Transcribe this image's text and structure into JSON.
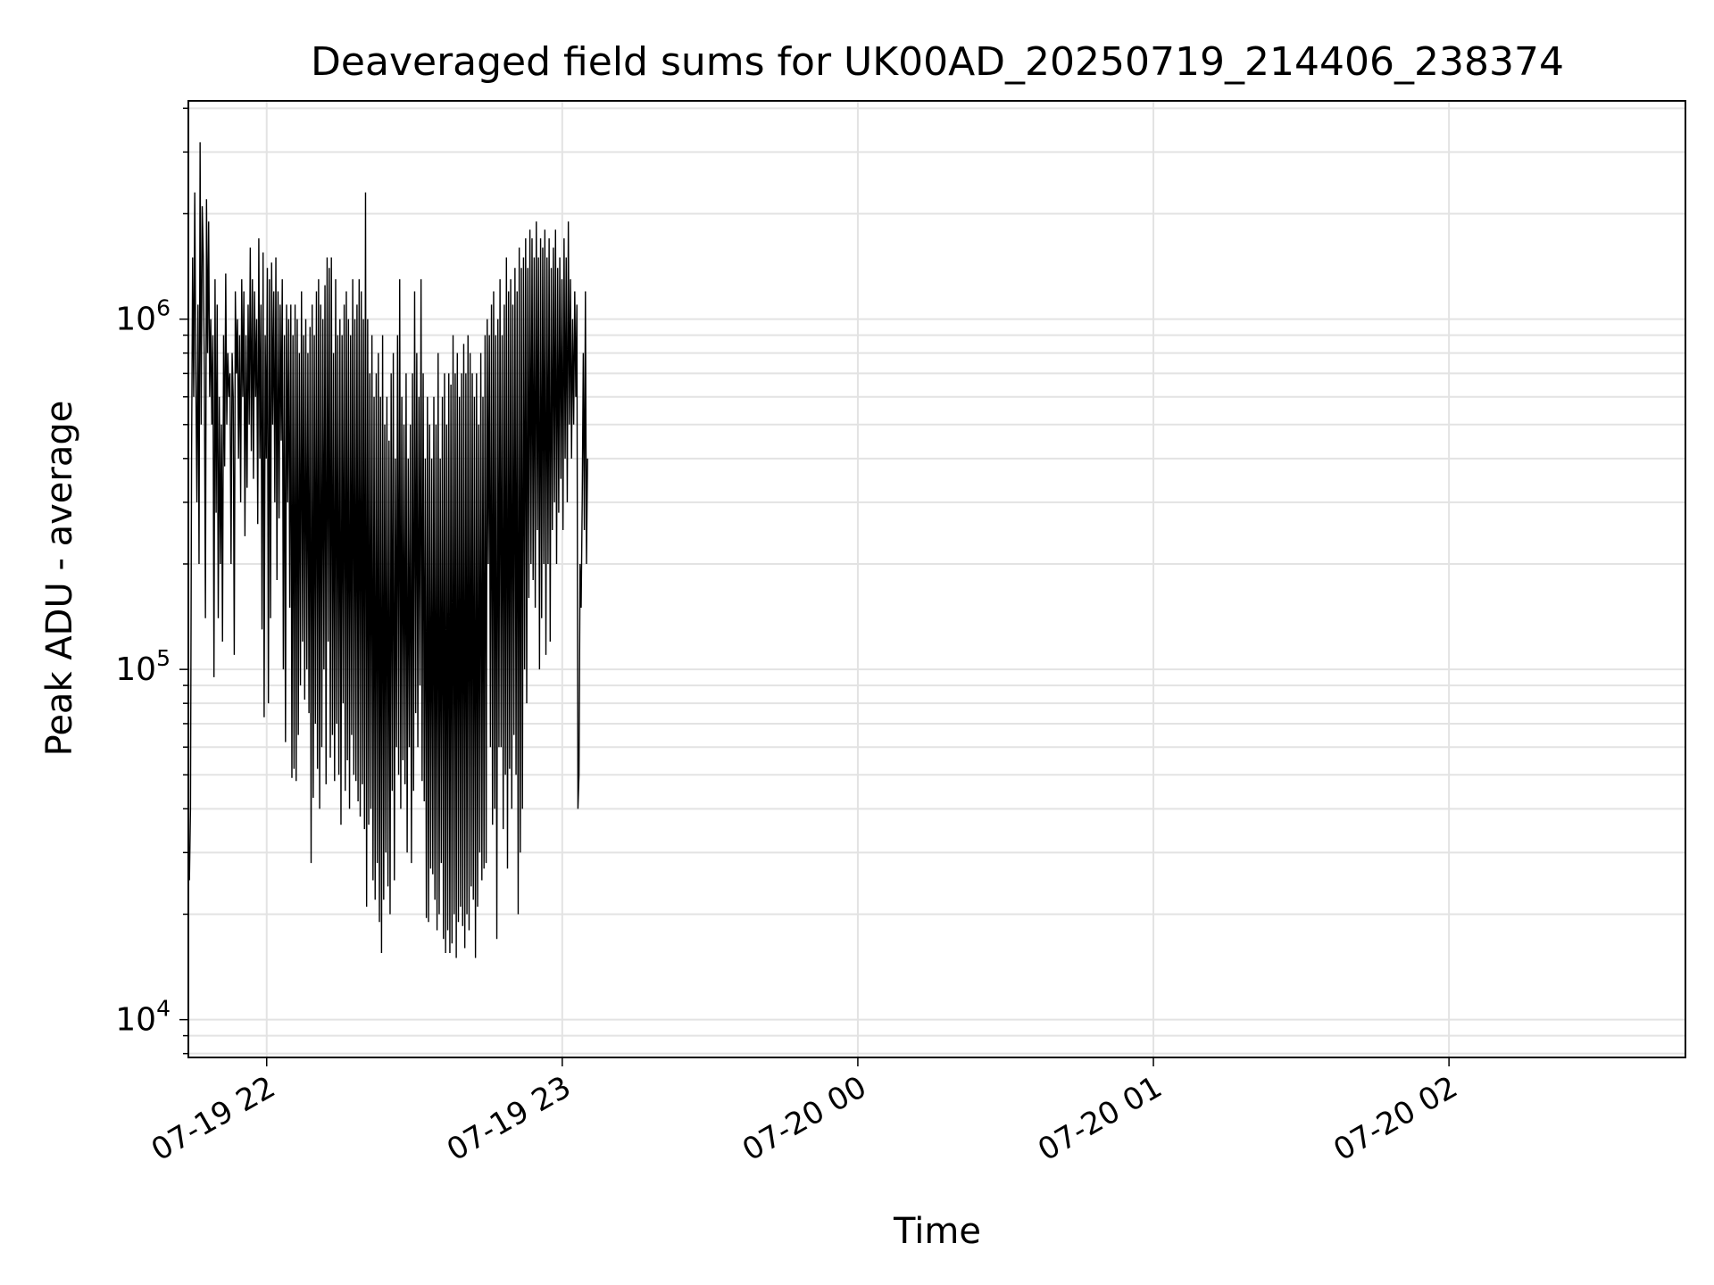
{
  "chart_data": {
    "type": "line",
    "title": "Deaveraged field sums for UK00AD_20250719_214406_238374",
    "xlabel": "Time",
    "ylabel": "Peak ADU - average",
    "yscale": "log",
    "ylim": [
      7800,
      4200000
    ],
    "xlim": [
      "2025-07-19T21:44:06",
      "2025-07-20T02:48:00"
    ],
    "grid": true,
    "line_color": "#000000",
    "x_ticks": [
      {
        "x": "2025-07-19T22:00",
        "label": "07-19 22"
      },
      {
        "x": "2025-07-19T23:00",
        "label": "07-19 23"
      },
      {
        "x": "2025-07-20T00:00",
        "label": "07-20 00"
      },
      {
        "x": "2025-07-20T01:00",
        "label": "07-20 01"
      },
      {
        "x": "2025-07-20T02:00",
        "label": "07-20 02"
      }
    ],
    "y_ticks": [
      {
        "y": 10000,
        "base": "10",
        "exp": "4"
      },
      {
        "y": 100000,
        "base": "10",
        "exp": "5"
      },
      {
        "y": 1000000,
        "base": "10",
        "exp": "6"
      }
    ],
    "series": [
      {
        "x_start": "2025-07-19T21:44:06",
        "sample_interval_seconds": 13,
        "values": [
          30000,
          25000,
          40000,
          400000,
          1500000,
          600000,
          2300000,
          700000,
          300000,
          1100000,
          200000,
          3200000,
          500000,
          2100000,
          1500000,
          700000,
          140000,
          2200000,
          800000,
          1900000,
          600000,
          1000000,
          500000,
          900000,
          95000,
          1300000,
          280000,
          1100000,
          140000,
          600000,
          200000,
          500000,
          120000,
          900000,
          380000,
          1350000,
          500000,
          800000,
          600000,
          700000,
          200000,
          800000,
          600000,
          110000,
          1200000,
          700000,
          1000000,
          400000,
          900000,
          300000,
          1300000,
          600000,
          1200000,
          240000,
          900000,
          330000,
          1100000,
          500000,
          1600000,
          420000,
          1300000,
          350000,
          1200000,
          600000,
          1000000,
          260000,
          1700000,
          400000,
          1100000,
          130000,
          1550000,
          73000,
          900000,
          400000,
          1400000,
          80000,
          1300000,
          140000,
          1450000,
          500000,
          1200000,
          300000,
          1500000,
          180000,
          1200000,
          270000,
          1100000,
          450000,
          1300000,
          100000,
          900000,
          62000,
          1100000,
          300000,
          1000000,
          150000,
          1100000,
          49000,
          900000,
          52000,
          1100000,
          48000,
          1000000,
          65000,
          800000,
          90000,
          1200000,
          120000,
          900000,
          82000,
          1000000,
          100000,
          800000,
          75000,
          950000,
          28000,
          1100000,
          43000,
          900000,
          70000,
          1200000,
          52000,
          1300000,
          40000,
          1100000,
          60000,
          1000000,
          100000,
          1250000,
          47000,
          1500000,
          120000,
          1400000,
          56000,
          1500000,
          65000,
          800000,
          48000,
          1300000,
          70000,
          900000,
          50000,
          1000000,
          36000,
          900000,
          80000,
          1100000,
          45000,
          1200000,
          55000,
          1000000,
          40000,
          900000,
          65000,
          1300000,
          50000,
          1000000,
          48000,
          1100000,
          42000,
          1300000,
          38000,
          1200000,
          47000,
          1000000,
          35000,
          2300000,
          21000,
          1000000,
          36000,
          700000,
          40000,
          900000,
          25000,
          600000,
          22000,
          700000,
          28000,
          800000,
          19000,
          600000,
          15500,
          900000,
          22000,
          500000,
          30000,
          600000,
          24000,
          450000,
          20000,
          700000,
          45000,
          800000,
          25000,
          400000,
          60000,
          900000,
          50000,
          1300000,
          40000,
          600000,
          55000,
          500000,
          47000,
          700000,
          30000,
          400000,
          60000,
          500000,
          28000,
          700000,
          45000,
          1200000,
          75000,
          800000,
          60000,
          600000,
          90000,
          1300000,
          48000,
          700000,
          42000,
          400000,
          19500,
          600000,
          19000,
          500000,
          27000,
          400000,
          26000,
          600000,
          22000,
          500000,
          18000,
          800000,
          20000,
          400000,
          28000,
          600000,
          17000,
          700000,
          15500,
          500000,
          18000,
          700000,
          15500,
          650000,
          16500,
          900000,
          20000,
          700000,
          15000,
          800000,
          19000,
          600000,
          21000,
          700000,
          18500,
          850000,
          16000,
          700000,
          20000,
          900000,
          18000,
          800000,
          24000,
          700000,
          22000,
          600000,
          15000,
          700000,
          21000,
          500000,
          30000,
          800000,
          25000,
          600000,
          27000,
          900000,
          28000,
          1000000,
          200000,
          900000,
          60000,
          1100000,
          36000,
          1200000,
          40000,
          900000,
          17000,
          1000000,
          60000,
          1300000,
          60000,
          900000,
          35000,
          1100000,
          50000,
          1500000,
          27000,
          1200000,
          52000,
          1300000,
          40000,
          1100000,
          65000,
          1400000,
          50000,
          1200000,
          20000,
          1600000,
          30000,
          1400000,
          40000,
          1500000,
          100000,
          1700000,
          80000,
          1400000,
          160000,
          1800000,
          200000,
          1700000,
          180000,
          1500000,
          150000,
          1900000,
          250000,
          1500000,
          100000,
          1700000,
          140000,
          1600000,
          200000,
          1800000,
          110000,
          1500000,
          200000,
          1700000,
          120000,
          1400000,
          250000,
          1600000,
          300000,
          1800000,
          200000,
          1400000,
          280000,
          1500000,
          350000,
          1300000,
          250000,
          1700000,
          400000,
          1500000,
          300000,
          1900000,
          500000,
          1300000,
          400000,
          1000000,
          500000,
          1200000,
          600000,
          1100000,
          40000,
          50000,
          200000,
          150000,
          300000,
          800000,
          250000,
          1200000,
          200000,
          400000
        ]
      }
    ]
  }
}
